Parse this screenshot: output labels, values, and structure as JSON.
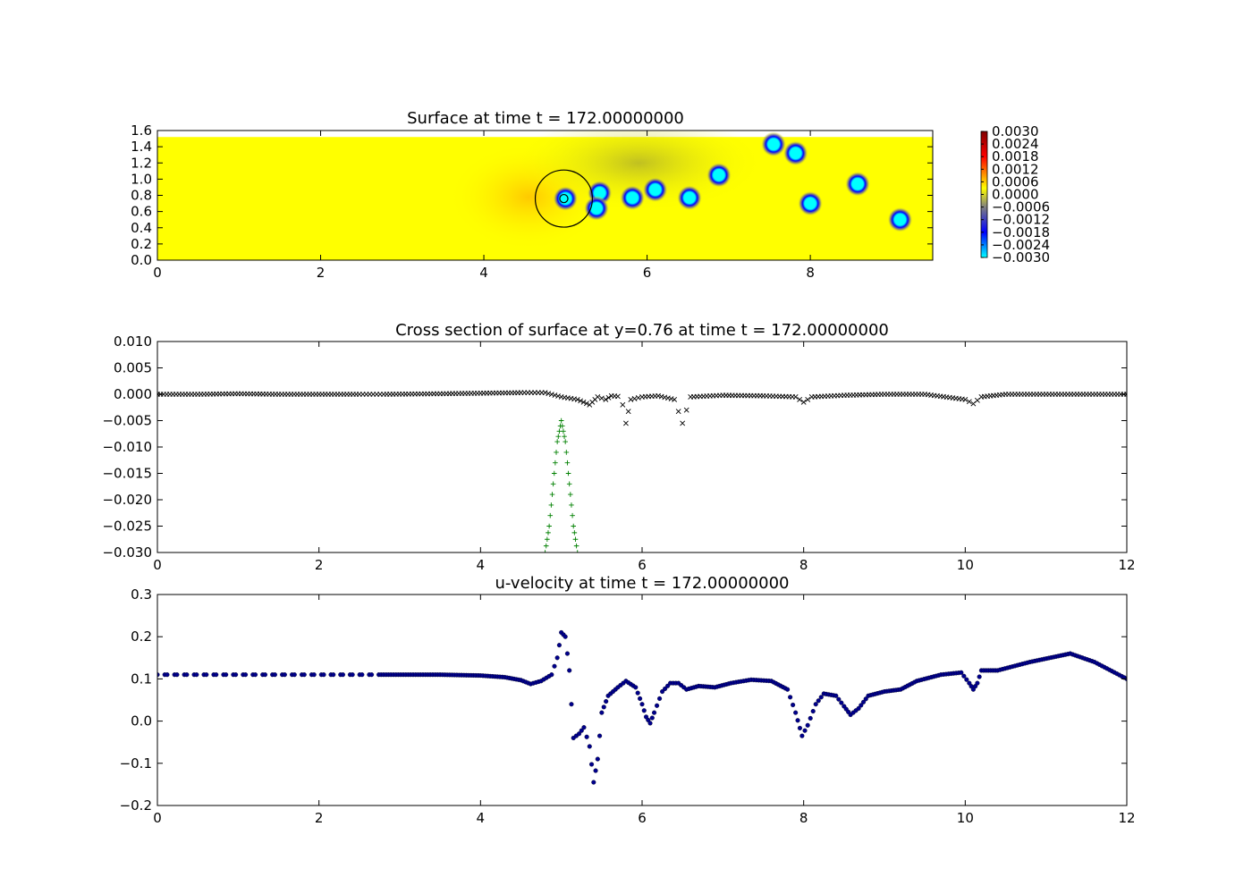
{
  "figure": {
    "background": "#ffffff"
  },
  "chart_data": [
    {
      "type": "heatmap",
      "title": "Surface at time t =   172.00000000",
      "xlim": [
        0,
        9.5
      ],
      "ylim": [
        0,
        1.6
      ],
      "x_ticks": [
        "0",
        "2",
        "4",
        "6",
        "8"
      ],
      "y_ticks": [
        "0.0",
        "0.2",
        "0.4",
        "0.6",
        "0.8",
        "1.0",
        "1.2",
        "1.4",
        "1.6"
      ],
      "field_extent": {
        "x": [
          0,
          9.5
        ],
        "y": [
          0,
          1.52
        ]
      },
      "background_value": 0.0,
      "colormap": [
        "#00ffff",
        "#0000ff",
        "#7f7f7f",
        "#ffff00",
        "#ff0000",
        "#7f0000"
      ],
      "colorbar": {
        "range": [
          -0.003,
          0.003
        ],
        "labels": [
          "0.0030",
          "0.0024",
          "0.0018",
          "0.0012",
          "0.0006",
          "0.0000",
          "−0.0006",
          "−0.0012",
          "−0.0018",
          "−0.0024",
          "−0.0030"
        ]
      },
      "depressions": [
        {
          "x": 5.0,
          "y": 0.76
        },
        {
          "x": 5.42,
          "y": 0.83
        },
        {
          "x": 5.38,
          "y": 0.64
        },
        {
          "x": 5.82,
          "y": 0.77
        },
        {
          "x": 6.1,
          "y": 0.87
        },
        {
          "x": 6.52,
          "y": 0.77
        },
        {
          "x": 6.88,
          "y": 1.05
        },
        {
          "x": 7.55,
          "y": 1.43
        },
        {
          "x": 7.82,
          "y": 1.32
        },
        {
          "x": 8.0,
          "y": 0.7
        },
        {
          "x": 8.58,
          "y": 0.94
        },
        {
          "x": 9.1,
          "y": 0.5
        }
      ],
      "circle": {
        "x": 4.98,
        "y": 0.76,
        "r": 0.35
      },
      "inner_circle": {
        "x": 4.98,
        "y": 0.76,
        "r": 0.05
      }
    },
    {
      "type": "scatter",
      "title": "Cross section of surface at y=0.76 at time t =   172.00000000",
      "xlim": [
        0,
        12
      ],
      "ylim": [
        -0.03,
        0.01
      ],
      "x_ticks": [
        "0",
        "2",
        "4",
        "6",
        "8",
        "10",
        "12"
      ],
      "y_ticks": [
        "0.010",
        "0.005",
        "0.000",
        "−0.005",
        "−0.010",
        "−0.015",
        "−0.020",
        "−0.025",
        "−0.030"
      ],
      "series": [
        {
          "marker": "x",
          "color": "#000000",
          "points": [
            [
              0,
              0.0
            ],
            [
              0.5,
              0.0
            ],
            [
              1.0,
              0.0001
            ],
            [
              1.5,
              0.0
            ],
            [
              2.0,
              0.0
            ],
            [
              2.5,
              0.0
            ],
            [
              2.8,
              0.0
            ],
            [
              3.5,
              0.0001
            ],
            [
              4.0,
              0.0002
            ],
            [
              4.5,
              0.0003
            ],
            [
              4.8,
              0.0003
            ],
            [
              5.0,
              -0.0005
            ],
            [
              5.2,
              -0.001
            ],
            [
              5.35,
              -0.002
            ],
            [
              5.45,
              -0.0005
            ],
            [
              5.55,
              -0.001
            ],
            [
              5.62,
              -0.0003
            ],
            [
              5.7,
              -0.0004
            ],
            [
              5.76,
              -0.002
            ],
            [
              5.8,
              -0.0055
            ],
            [
              5.86,
              -0.001
            ],
            [
              6.0,
              -0.0005
            ],
            [
              6.2,
              -0.0003
            ],
            [
              6.4,
              -0.001
            ],
            [
              6.5,
              -0.0055
            ],
            [
              6.6,
              -0.0005
            ],
            [
              7.0,
              -0.0002
            ],
            [
              7.5,
              -0.0003
            ],
            [
              7.9,
              -0.0005
            ],
            [
              8.0,
              -0.0015
            ],
            [
              8.1,
              -0.0005
            ],
            [
              8.5,
              -0.0002
            ],
            [
              9.0,
              0.0
            ],
            [
              9.5,
              0.0
            ],
            [
              10.0,
              -0.001
            ],
            [
              10.1,
              -0.0018
            ],
            [
              10.2,
              -0.0005
            ],
            [
              10.5,
              0.0
            ],
            [
              11.0,
              0.0
            ],
            [
              11.5,
              0.0
            ],
            [
              12.0,
              0.0
            ]
          ]
        },
        {
          "marker": "+",
          "color": "#008000",
          "points": [
            [
              4.8,
              -0.03
            ],
            [
              4.85,
              -0.025
            ],
            [
              4.9,
              -0.017
            ],
            [
              4.95,
              -0.009
            ],
            [
              5.0,
              -0.005
            ],
            [
              5.05,
              -0.009
            ],
            [
              5.1,
              -0.017
            ],
            [
              5.15,
              -0.025
            ],
            [
              5.2,
              -0.03
            ]
          ]
        }
      ]
    },
    {
      "type": "scatter",
      "title": "u-velocity at time t =   172.00000000",
      "xlim": [
        0,
        12
      ],
      "ylim": [
        -0.2,
        0.3
      ],
      "x_ticks": [
        "0",
        "2",
        "4",
        "6",
        "8",
        "10",
        "12"
      ],
      "y_ticks": [
        "0.3",
        "0.2",
        "0.1",
        "0.0",
        "−0.1",
        "−0.2"
      ],
      "series": [
        {
          "marker": "o",
          "color": "#00008b",
          "points": [
            [
              0,
              0.11
            ],
            [
              1.0,
              0.11
            ],
            [
              2.0,
              0.11
            ],
            [
              2.8,
              0.11
            ],
            [
              3.5,
              0.11
            ],
            [
              4.0,
              0.108
            ],
            [
              4.3,
              0.104
            ],
            [
              4.5,
              0.097
            ],
            [
              4.62,
              0.088
            ],
            [
              4.75,
              0.095
            ],
            [
              4.88,
              0.11
            ],
            [
              4.95,
              0.15
            ],
            [
              5.0,
              0.21
            ],
            [
              5.05,
              0.2
            ],
            [
              5.1,
              0.12
            ],
            [
              5.15,
              -0.04
            ],
            [
              5.22,
              -0.03
            ],
            [
              5.28,
              -0.015
            ],
            [
              5.35,
              -0.06
            ],
            [
              5.4,
              -0.145
            ],
            [
              5.45,
              -0.09
            ],
            [
              5.5,
              0.02
            ],
            [
              5.58,
              0.06
            ],
            [
              5.7,
              0.08
            ],
            [
              5.8,
              0.095
            ],
            [
              5.92,
              0.08
            ],
            [
              6.0,
              0.04
            ],
            [
              6.05,
              0.01
            ],
            [
              6.1,
              -0.005
            ],
            [
              6.15,
              0.02
            ],
            [
              6.25,
              0.07
            ],
            [
              6.35,
              0.09
            ],
            [
              6.45,
              0.09
            ],
            [
              6.55,
              0.075
            ],
            [
              6.7,
              0.083
            ],
            [
              6.9,
              0.08
            ],
            [
              7.1,
              0.09
            ],
            [
              7.35,
              0.098
            ],
            [
              7.6,
              0.095
            ],
            [
              7.8,
              0.075
            ],
            [
              7.9,
              0.02
            ],
            [
              7.98,
              -0.035
            ],
            [
              8.05,
              -0.01
            ],
            [
              8.15,
              0.04
            ],
            [
              8.25,
              0.065
            ],
            [
              8.4,
              0.06
            ],
            [
              8.5,
              0.035
            ],
            [
              8.58,
              0.015
            ],
            [
              8.68,
              0.03
            ],
            [
              8.8,
              0.06
            ],
            [
              9.0,
              0.07
            ],
            [
              9.2,
              0.075
            ],
            [
              9.4,
              0.095
            ],
            [
              9.7,
              0.11
            ],
            [
              9.95,
              0.115
            ],
            [
              10.05,
              0.09
            ],
            [
              10.1,
              0.075
            ],
            [
              10.15,
              0.09
            ],
            [
              10.2,
              0.12
            ],
            [
              10.4,
              0.12
            ],
            [
              10.8,
              0.14
            ],
            [
              11.3,
              0.16
            ],
            [
              11.6,
              0.14
            ],
            [
              12.0,
              0.1
            ]
          ]
        }
      ]
    }
  ]
}
